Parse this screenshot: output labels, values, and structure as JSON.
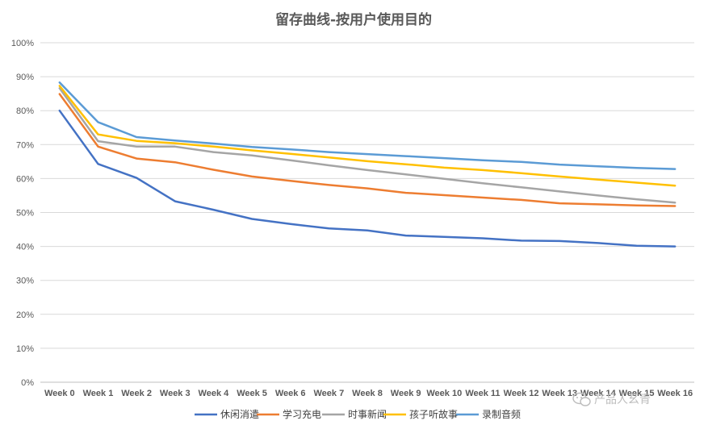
{
  "chart_data": {
    "type": "line",
    "title": "留存曲线-按用户使用目的",
    "xlabel": "",
    "ylabel": "",
    "categories": [
      "Week 0",
      "Week 1",
      "Week 2",
      "Week 3",
      "Week 4",
      "Week 5",
      "Week 6",
      "Week 7",
      "Week 8",
      "Week 9",
      "Week 10",
      "Week 11",
      "Week 12",
      "Week 13",
      "Week 14",
      "Week 15",
      "Week 16"
    ],
    "ylim": [
      0,
      100
    ],
    "yticks": [
      "0%",
      "10%",
      "20%",
      "30%",
      "40%",
      "50%",
      "60%",
      "70%",
      "80%",
      "90%",
      "100%"
    ],
    "grid": true,
    "legend_position": "bottom",
    "series": [
      {
        "name": "休闲消遣",
        "color": "#4472C4",
        "values": [
          80,
          64.3,
          60.2,
          53.3,
          50.8,
          48.1,
          46.6,
          45.3,
          44.7,
          43.2,
          42.8,
          42.4,
          41.7,
          41.6,
          41.0,
          40.2,
          40.0
        ]
      },
      {
        "name": "学习充电",
        "color": "#ED7D31",
        "values": [
          84.9,
          69.4,
          65.9,
          64.8,
          62.6,
          60.6,
          59.3,
          58.1,
          57.1,
          55.8,
          55.1,
          54.4,
          53.7,
          52.7,
          52.4,
          52.1,
          51.9
        ]
      },
      {
        "name": "时事新闻",
        "color": "#A5A5A5",
        "values": [
          86.6,
          71.0,
          69.4,
          69.4,
          67.8,
          66.8,
          65.4,
          63.9,
          62.5,
          61.2,
          59.9,
          58.6,
          57.4,
          56.2,
          55.0,
          53.9,
          52.9
        ]
      },
      {
        "name": "孩子听故事",
        "color": "#FFC000",
        "values": [
          87.3,
          73.0,
          71.1,
          70.4,
          69.4,
          68.3,
          67.3,
          66.2,
          65.1,
          64.2,
          63.2,
          62.5,
          61.6,
          60.6,
          59.7,
          58.8,
          57.9
        ]
      },
      {
        "name": "录制音频",
        "color": "#5B9BD5",
        "values": [
          88.3,
          76.6,
          72.2,
          71.2,
          70.3,
          69.3,
          68.6,
          67.8,
          67.2,
          66.6,
          66.0,
          65.4,
          64.9,
          64.1,
          63.6,
          63.1,
          62.8
        ]
      }
    ]
  },
  "watermark": {
    "icon": "wechat-icon",
    "text": "产品人幺青"
  }
}
